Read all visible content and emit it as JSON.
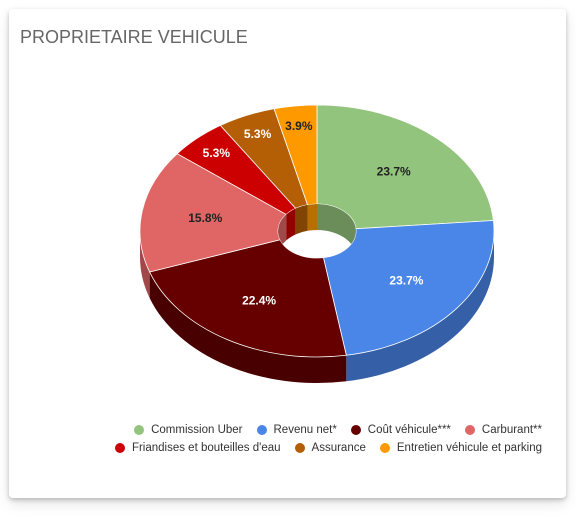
{
  "title": "PROPRIETAIRE VEHICULE",
  "chart_data": {
    "type": "pie",
    "title": "PROPRIETAIRE VEHICULE",
    "categories": [
      "Commission Uber",
      "Revenu net*",
      "Coût véhicule***",
      "Carburant**",
      "Friandises et bouteilles d'eau",
      "Assurance",
      "Entretien véhicule et parking"
    ],
    "values": [
      23.7,
      23.7,
      22.4,
      15.8,
      5.3,
      5.3,
      3.9
    ],
    "labels": [
      "23.7%",
      "23.7%",
      "22.4%",
      "15.8%",
      "5.3%",
      "5.3%",
      "3.9%"
    ],
    "colors": [
      "#93c47d",
      "#4a86e8",
      "#660000",
      "#e06666",
      "#cc0000",
      "#b45f06",
      "#ff9900"
    ],
    "label_colors": [
      "#222222",
      "#ffffff",
      "#ffffff",
      "#222222",
      "#ffffff",
      "#ffffff",
      "#222222"
    ],
    "style": "3d-donut",
    "legend_position": "bottom-right"
  },
  "legend": {
    "rows": [
      [
        0,
        1,
        2,
        3
      ],
      [
        4,
        5,
        6
      ]
    ]
  }
}
